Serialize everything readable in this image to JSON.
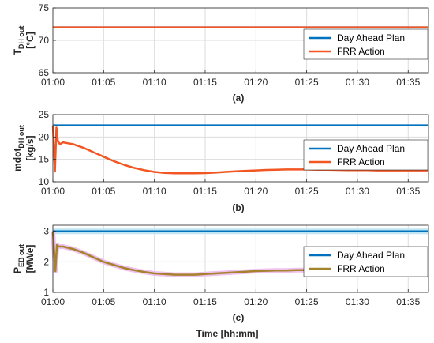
{
  "colors": {
    "plan": "#0072BD",
    "frr": "#F25623",
    "frr_power": "#A5832C",
    "frr_power_band": "#F0C0EE"
  },
  "x_label": "Time [hh:mm]",
  "chart_data": [
    {
      "type": "line",
      "caption": "(a)",
      "ylabel_main": "T",
      "ylabel_sub": "DH out",
      "ylabel_unit": "[°C]",
      "xlim": [
        0,
        37
      ],
      "ylim": [
        65,
        75
      ],
      "grid": true,
      "legend": "top-right",
      "x_ticks": [
        0,
        5,
        10,
        15,
        20,
        25,
        30,
        35
      ],
      "x_tick_labels": [
        "01:00",
        "01:05",
        "01:10",
        "01:15",
        "01:20",
        "01:25",
        "01:30",
        "01:35"
      ],
      "y_ticks": [
        65,
        70,
        75
      ],
      "y_tick_labels": [
        "65",
        "70",
        "75"
      ],
      "series": [
        {
          "name": "Day Ahead Plan",
          "x": [
            0,
            37
          ],
          "y": [
            72,
            72
          ]
        },
        {
          "name": "FRR Action",
          "x": [
            0,
            37
          ],
          "y": [
            72,
            72
          ]
        }
      ]
    },
    {
      "type": "line",
      "caption": "(b)",
      "ylabel_main": "mdot",
      "ylabel_sub": "DH out",
      "ylabel_unit": "[kg/s]",
      "xlim": [
        0,
        37
      ],
      "ylim": [
        10,
        25
      ],
      "grid": true,
      "legend": "right",
      "x_ticks": [
        0,
        5,
        10,
        15,
        20,
        25,
        30,
        35
      ],
      "x_tick_labels": [
        "01:00",
        "01:05",
        "01:10",
        "01:15",
        "01:20",
        "01:25",
        "01:30",
        "01:35"
      ],
      "y_ticks": [
        10,
        15,
        20,
        25
      ],
      "y_tick_labels": [
        "10",
        "15",
        "20",
        "25"
      ],
      "series": [
        {
          "name": "Day Ahead Plan",
          "x": [
            0,
            37
          ],
          "y": [
            22.6,
            22.6
          ]
        },
        {
          "name": "FRR Action",
          "x": [
            0,
            0.2,
            0.35,
            0.5,
            0.7,
            1,
            1.5,
            2,
            3,
            4,
            5,
            6,
            7,
            8,
            9,
            10,
            11,
            12,
            13,
            14,
            15,
            16,
            17,
            18,
            19,
            20,
            21,
            22,
            23,
            24,
            25,
            26,
            27,
            28,
            29,
            30,
            31,
            32,
            33,
            34,
            35,
            36,
            37
          ],
          "y": [
            22.6,
            12.3,
            22.1,
            19.0,
            18.4,
            18.8,
            18.6,
            18.4,
            17.6,
            16.6,
            15.6,
            14.6,
            13.8,
            13.1,
            12.6,
            12.2,
            12.0,
            11.9,
            11.9,
            11.9,
            11.95,
            12.05,
            12.2,
            12.35,
            12.45,
            12.55,
            12.65,
            12.7,
            12.75,
            12.75,
            12.75,
            12.7,
            12.7,
            12.65,
            12.6,
            12.6,
            12.6,
            12.55,
            12.55,
            12.55,
            12.55,
            12.55,
            12.55
          ]
        }
      ]
    },
    {
      "type": "line",
      "caption": "(c)",
      "ylabel_main": "P",
      "ylabel_sub": "EB out",
      "ylabel_unit": "[MWe]",
      "xlim": [
        0,
        37
      ],
      "ylim": [
        1,
        3.2
      ],
      "grid": true,
      "legend": "right",
      "x_ticks": [
        0,
        5,
        10,
        15,
        20,
        25,
        30,
        35
      ],
      "x_tick_labels": [
        "01:00",
        "01:05",
        "01:10",
        "01:15",
        "01:20",
        "01:25",
        "01:30",
        "01:35"
      ],
      "y_ticks": [
        1,
        2,
        3
      ],
      "y_tick_labels": [
        "1",
        "2",
        "3"
      ],
      "series": [
        {
          "name": "Day Ahead Plan",
          "x": [
            0,
            37
          ],
          "y": [
            3.0,
            3.0
          ]
        },
        {
          "name": "FRR Action",
          "x": [
            0,
            0.25,
            0.4,
            0.6,
            1,
            2,
            3,
            4,
            5,
            6,
            7,
            8,
            9,
            10,
            11,
            12,
            13,
            14,
            15,
            16,
            17,
            18,
            19,
            20,
            21,
            22,
            23,
            24,
            25,
            26,
            27,
            28,
            29,
            30,
            31,
            32,
            33,
            34,
            35,
            36,
            37
          ],
          "y": [
            3.0,
            1.7,
            2.55,
            2.5,
            2.5,
            2.42,
            2.3,
            2.15,
            2.0,
            1.9,
            1.8,
            1.73,
            1.67,
            1.62,
            1.6,
            1.58,
            1.58,
            1.58,
            1.6,
            1.62,
            1.64,
            1.66,
            1.68,
            1.7,
            1.71,
            1.72,
            1.72,
            1.73,
            1.73,
            1.72,
            1.72,
            1.71,
            1.71,
            1.71,
            1.7,
            1.7,
            1.7,
            1.7,
            1.7,
            1.7,
            1.7
          ]
        }
      ]
    }
  ]
}
